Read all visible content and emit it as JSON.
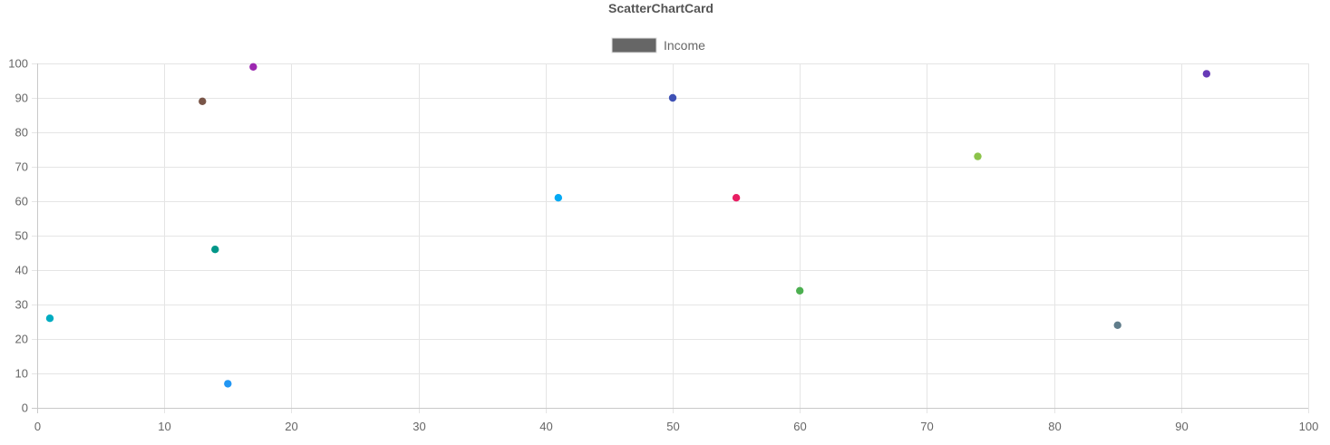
{
  "card": {
    "title": "ScatterChartCard"
  },
  "chart_data": {
    "type": "scatter",
    "title": "ScatterChartCard",
    "xlabel": "",
    "ylabel": "",
    "xlim": [
      0,
      100
    ],
    "ylim": [
      0,
      100
    ],
    "x_ticks": [
      "0",
      "10",
      "20",
      "30",
      "40",
      "50",
      "60",
      "70",
      "80",
      "90",
      "100"
    ],
    "y_ticks": [
      "0",
      "10",
      "20",
      "30",
      "40",
      "50",
      "60",
      "70",
      "80",
      "90",
      "100"
    ],
    "grid": true,
    "legend": {
      "position": "top",
      "entries": [
        {
          "label": "Income",
          "color": "#666666"
        }
      ]
    },
    "series": [
      {
        "name": "Income",
        "points": [
          {
            "x": 1,
            "y": 26,
            "color": "#00acc1"
          },
          {
            "x": 13,
            "y": 89,
            "color": "#795548"
          },
          {
            "x": 14,
            "y": 46,
            "color": "#009688"
          },
          {
            "x": 15,
            "y": 7,
            "color": "#2196f3"
          },
          {
            "x": 17,
            "y": 99,
            "color": "#9c27b0"
          },
          {
            "x": 41,
            "y": 61,
            "color": "#03a9f4"
          },
          {
            "x": 50,
            "y": 90,
            "color": "#3f51b5"
          },
          {
            "x": 55,
            "y": 61,
            "color": "#e91e63"
          },
          {
            "x": 60,
            "y": 34,
            "color": "#4caf50"
          },
          {
            "x": 74,
            "y": 73,
            "color": "#8bc34a"
          },
          {
            "x": 85,
            "y": 24,
            "color": "#607d8b"
          },
          {
            "x": 92,
            "y": 97,
            "color": "#673ab7"
          }
        ]
      }
    ]
  },
  "colors": {
    "grid": "#e5e5e5",
    "axis": "#c9c9c9",
    "text": "#666666"
  }
}
